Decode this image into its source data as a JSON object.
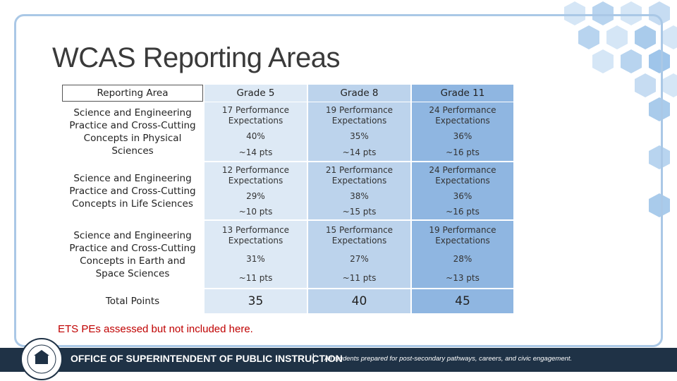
{
  "title": "WCAS Reporting Areas",
  "table": {
    "header": [
      "Reporting Area",
      "Grade 5",
      "Grade 8",
      "Grade 11"
    ],
    "rows": [
      {
        "area": "Science and Engineering Practice and Cross-Cutting Concepts in Physical Sciences",
        "cells": [
          [
            "17 Performance Expectations",
            "40%",
            "~14 pts"
          ],
          [
            "19 Performance Expectations",
            "35%",
            "~14 pts"
          ],
          [
            "24 Performance Expectations",
            "36%",
            "~16 pts"
          ]
        ]
      },
      {
        "area": "Science and Engineering Practice and Cross-Cutting Concepts in Life Sciences",
        "cells": [
          [
            "12 Performance Expectations",
            "29%",
            "~10 pts"
          ],
          [
            "21 Performance Expectations",
            "38%",
            "~15 pts"
          ],
          [
            "24 Performance Expectations",
            "36%",
            "~16 pts"
          ]
        ]
      },
      {
        "area": "Science and Engineering Practice and Cross-Cutting Concepts in Earth and Space Sciences",
        "cells": [
          [
            "13 Performance Expectations",
            "31%",
            "~11 pts"
          ],
          [
            "15 Performance Expectations",
            "27%",
            "~11 pts"
          ],
          [
            "19 Performance Expectations",
            "28%",
            "~13 pts"
          ]
        ]
      }
    ],
    "total": {
      "label": "Total Points",
      "values": [
        "35",
        "40",
        "45"
      ]
    }
  },
  "note": "ETS PEs assessed but not included here.",
  "footer": {
    "office": "OFFICE OF SUPERINTENDENT OF PUBLIC INSTRUCTION",
    "separator": "|",
    "tagline": "All students prepared for post-secondary pathways, careers, and civic engagement."
  }
}
